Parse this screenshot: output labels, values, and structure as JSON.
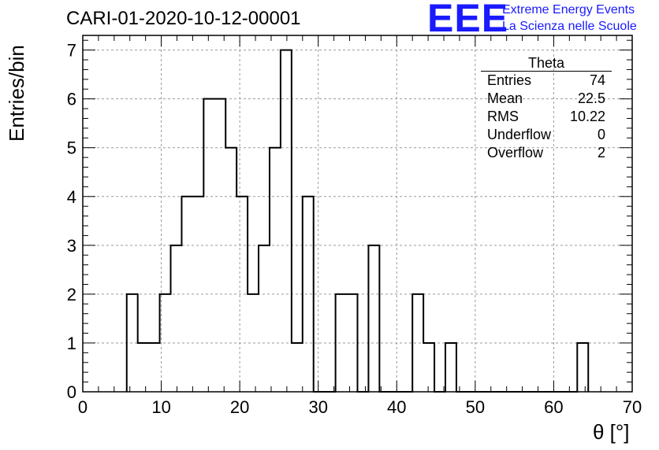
{
  "chart_data": {
    "type": "bar",
    "title": "CARI-01-2020-10-12-00001",
    "xlabel": "θ [°]",
    "ylabel": "Entries/bin",
    "xlim": [
      0,
      70
    ],
    "ylim": [
      0,
      7.3
    ],
    "bin_width": 1.4,
    "bins": [
      {
        "x0": 5.6,
        "value": 2
      },
      {
        "x0": 7.0,
        "value": 1
      },
      {
        "x0": 8.4,
        "value": 1
      },
      {
        "x0": 9.8,
        "value": 2
      },
      {
        "x0": 11.2,
        "value": 3
      },
      {
        "x0": 12.6,
        "value": 4
      },
      {
        "x0": 14.0,
        "value": 4
      },
      {
        "x0": 15.4,
        "value": 6
      },
      {
        "x0": 16.8,
        "value": 6
      },
      {
        "x0": 18.2,
        "value": 5
      },
      {
        "x0": 19.6,
        "value": 4
      },
      {
        "x0": 21.0,
        "value": 2
      },
      {
        "x0": 22.4,
        "value": 3
      },
      {
        "x0": 23.8,
        "value": 5
      },
      {
        "x0": 25.2,
        "value": 7
      },
      {
        "x0": 26.6,
        "value": 1
      },
      {
        "x0": 28.0,
        "value": 4
      },
      {
        "x0": 29.4,
        "value": 0
      },
      {
        "x0": 30.8,
        "value": 0
      },
      {
        "x0": 32.2,
        "value": 2
      },
      {
        "x0": 33.6,
        "value": 2
      },
      {
        "x0": 35.0,
        "value": 0
      },
      {
        "x0": 36.4,
        "value": 3
      },
      {
        "x0": 37.8,
        "value": 0
      },
      {
        "x0": 39.2,
        "value": 0
      },
      {
        "x0": 40.6,
        "value": 0
      },
      {
        "x0": 42.0,
        "value": 2
      },
      {
        "x0": 43.4,
        "value": 1
      },
      {
        "x0": 44.8,
        "value": 0
      },
      {
        "x0": 46.2,
        "value": 1
      },
      {
        "x0": 47.6,
        "value": 0
      },
      {
        "x0": 49.0,
        "value": 0
      },
      {
        "x0": 50.4,
        "value": 0
      },
      {
        "x0": 51.8,
        "value": 0
      },
      {
        "x0": 53.2,
        "value": 0
      },
      {
        "x0": 54.6,
        "value": 0
      },
      {
        "x0": 56.0,
        "value": 0
      },
      {
        "x0": 57.4,
        "value": 0
      },
      {
        "x0": 58.8,
        "value": 0
      },
      {
        "x0": 60.2,
        "value": 0
      },
      {
        "x0": 61.6,
        "value": 0
      },
      {
        "x0": 63.0,
        "value": 1
      }
    ],
    "xticks": [
      0,
      10,
      20,
      30,
      40,
      50,
      60,
      70
    ],
    "yticks": [
      0,
      1,
      2,
      3,
      4,
      5,
      6,
      7
    ],
    "grid": true,
    "legend": "top-right"
  },
  "branding": {
    "logo_text": "EEE",
    "org_line1": "Extreme Energy Events",
    "org_line2": "La Scienza nelle Scuole",
    "color": "#1a1aff"
  },
  "stats_box": {
    "title": "Theta",
    "rows": [
      {
        "label": "Entries",
        "value": "74"
      },
      {
        "label": "Mean",
        "value": "22.5"
      },
      {
        "label": "RMS",
        "value": "10.22"
      },
      {
        "label": "Underflow",
        "value": "0"
      },
      {
        "label": "Overflow",
        "value": "2"
      }
    ]
  }
}
